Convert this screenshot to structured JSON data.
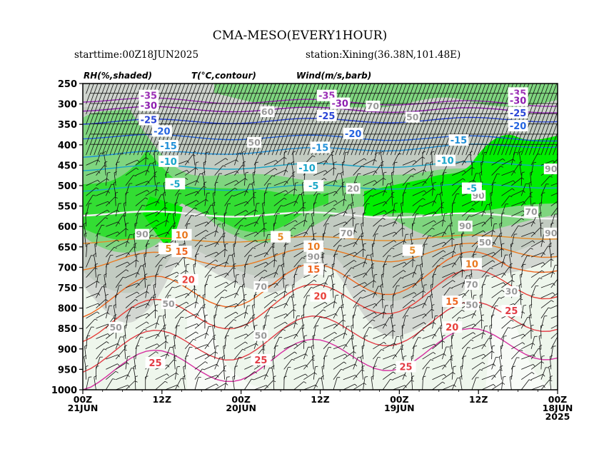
{
  "chart_data": {
    "type": "time-height cross section",
    "title": "CMA-MESO(EVERY1HOUR)",
    "start_time_label": "starttime:00Z18JUN2025",
    "station_label": "station:Xining(36.38N,101.48E)",
    "field_labels": [
      "RH(%,shaded)",
      "T(°C,contour)",
      "Wind(m/s,barb)"
    ],
    "y_axis": {
      "scale": "pressure (hPa), decreasing upward",
      "ylim": [
        1000,
        250
      ],
      "ticks": [
        250,
        300,
        350,
        400,
        450,
        500,
        550,
        600,
        650,
        700,
        750,
        800,
        850,
        900,
        950,
        1000
      ]
    },
    "x_axis": {
      "direction": "time runs right to left",
      "hours_range": [
        72,
        0
      ],
      "ticks": [
        {
          "hour": 72,
          "lines": [
            "00Z",
            "21JUN"
          ]
        },
        {
          "hour": 60,
          "lines": [
            "12Z"
          ]
        },
        {
          "hour": 48,
          "lines": [
            "00Z",
            "20JUN"
          ]
        },
        {
          "hour": 36,
          "lines": [
            "12Z"
          ]
        },
        {
          "hour": 24,
          "lines": [
            "00Z",
            "19JUN"
          ]
        },
        {
          "hour": 12,
          "lines": [
            "12Z"
          ]
        },
        {
          "hour": 0,
          "lines": [
            "00Z",
            "18JUN",
            "2025"
          ]
        }
      ]
    },
    "rh_shading_levels": [
      {
        "min": 0,
        "max": 50,
        "color": "#eef6ec"
      },
      {
        "min": 50,
        "max": 70,
        "color": "#d7dad6"
      },
      {
        "min": 70,
        "max": 80,
        "color": "#c4cec3"
      },
      {
        "min": 80,
        "max": 90,
        "color": "#7ed57e"
      },
      {
        "min": 90,
        "max": 95,
        "color": "#33dd33"
      },
      {
        "min": 95,
        "max": 100,
        "color": "#00ee00"
      }
    ],
    "temperature_contours": [
      {
        "value": -35,
        "label": "-35",
        "color": "#9b2fb5",
        "p_right": 300,
        "p_left": 290,
        "label_points": [
          {
            "hour": 62,
            "p": 281
          },
          {
            "hour": 35,
            "p": 281
          },
          {
            "hour": 6,
            "p": 275
          }
        ]
      },
      {
        "value": -30,
        "label": "-30",
        "color": "#8e1fb0",
        "p_right": 316,
        "p_left": 312,
        "label_points": [
          {
            "hour": 62,
            "p": 305
          },
          {
            "hour": 33,
            "p": 300
          },
          {
            "hour": 6,
            "p": 293
          }
        ]
      },
      {
        "value": -25,
        "label": "-25",
        "color": "#2a45d6",
        "p_right": 338,
        "p_left": 344,
        "label_points": [
          {
            "hour": 62,
            "p": 340
          },
          {
            "hour": 35,
            "p": 330
          },
          {
            "hour": 6,
            "p": 323
          }
        ]
      },
      {
        "value": -20,
        "label": "-20",
        "color": "#2464e0",
        "p_right": 385,
        "p_left": 380,
        "label_points": [
          {
            "hour": 60,
            "p": 368
          },
          {
            "hour": 31,
            "p": 374
          },
          {
            "hour": 6,
            "p": 355
          }
        ]
      },
      {
        "value": -15,
        "label": "-15",
        "color": "#1f8fd8",
        "p_right": 400,
        "p_left": 425,
        "label_points": [
          {
            "hour": 59,
            "p": 404
          },
          {
            "hour": 36,
            "p": 408
          },
          {
            "hour": 15,
            "p": 390
          }
        ]
      },
      {
        "value": -10,
        "label": "-10",
        "color": "#18a5c9",
        "p_right": 445,
        "p_left": 458,
        "label_points": [
          {
            "hour": 59,
            "p": 442
          },
          {
            "hour": 38,
            "p": 458
          },
          {
            "hour": 17,
            "p": 440
          }
        ]
      },
      {
        "value": -5,
        "label": "-5",
        "color": "#1aa7c6",
        "p_right": 500,
        "p_left": 508,
        "label_points": [
          {
            "hour": 58,
            "p": 497
          },
          {
            "hour": 37,
            "p": 502
          },
          {
            "hour": 13,
            "p": 508
          }
        ]
      },
      {
        "value": 0,
        "label": "",
        "color": "#f2f2f2",
        "p_right": 575,
        "p_left": 568,
        "label_points": []
      },
      {
        "value": 5,
        "label": "5",
        "color": "#e58a25",
        "p_right": 625,
        "p_left": 636,
        "label_points": [
          {
            "hour": 59,
            "p": 656
          },
          {
            "hour": 42,
            "p": 627
          },
          {
            "hour": 22,
            "p": 660
          }
        ]
      },
      {
        "value": 10,
        "label": "10",
        "color": "#ea7a20",
        "p_right": 655,
        "p_left": 688,
        "label_points": [
          {
            "hour": 57,
            "p": 622
          },
          {
            "hour": 37,
            "p": 650
          },
          {
            "hour": 13,
            "p": 693
          }
        ]
      },
      {
        "value": 15,
        "label": "15",
        "color": "#ef6620",
        "p_right": 690,
        "p_left": 780,
        "label_points": [
          {
            "hour": 57,
            "p": 663
          },
          {
            "hour": 37,
            "p": 706
          },
          {
            "hour": 16,
            "p": 785
          }
        ]
      },
      {
        "value": 20,
        "label": "20",
        "color": "#e8403a",
        "p_right": 730,
        "p_left": 840,
        "label_points": [
          {
            "hour": 56,
            "p": 732
          },
          {
            "hour": 36,
            "p": 772
          },
          {
            "hour": 16,
            "p": 848
          }
        ]
      },
      {
        "value": 25,
        "label": "25",
        "color": "#e23a44",
        "p_right": 810,
        "p_left": 915,
        "label_points": [
          {
            "hour": 61,
            "p": 935
          },
          {
            "hour": 45,
            "p": 928
          },
          {
            "hour": 23,
            "p": 945
          },
          {
            "hour": 7,
            "p": 808
          }
        ]
      },
      {
        "value": 30,
        "label": "",
        "color": "#d62fa0",
        "p_right": 880,
        "p_left": 960,
        "label_points": []
      }
    ],
    "rh_labels": [
      {
        "text": "90",
        "hour": 63,
        "p": 620
      },
      {
        "text": "50",
        "hour": 59,
        "p": 790
      },
      {
        "text": "50",
        "hour": 67,
        "p": 848
      },
      {
        "text": "70",
        "hour": 45,
        "p": 748
      },
      {
        "text": "90",
        "hour": 37,
        "p": 675
      },
      {
        "text": "50",
        "hour": 45,
        "p": 868
      },
      {
        "text": "70",
        "hour": 32,
        "p": 617
      },
      {
        "text": "70",
        "hour": 28,
        "p": 306
      },
      {
        "text": "90",
        "hour": 14,
        "p": 600
      },
      {
        "text": "70",
        "hour": 13,
        "p": 743
      },
      {
        "text": "50",
        "hour": 13,
        "p": 793
      },
      {
        "text": "90",
        "hour": 1,
        "p": 460
      },
      {
        "text": "90",
        "hour": 12,
        "p": 525
      },
      {
        "text": "50",
        "hour": 11,
        "p": 640
      },
      {
        "text": "90",
        "hour": 1,
        "p": 617
      },
      {
        "text": "70",
        "hour": 4,
        "p": 565
      },
      {
        "text": "30",
        "hour": 7,
        "p": 760
      },
      {
        "text": "20",
        "hour": 31,
        "p": 508
      },
      {
        "text": "50",
        "hour": 22,
        "p": 333
      },
      {
        "text": "50",
        "hour": 46,
        "p": 395
      },
      {
        "text": "60",
        "hour": 44,
        "p": 320
      }
    ],
    "wind_barbs": "half-barbs every hour at every 25 hPa level, predominantly westerly, strongest (20-30 m/s) above 400 hPa"
  }
}
